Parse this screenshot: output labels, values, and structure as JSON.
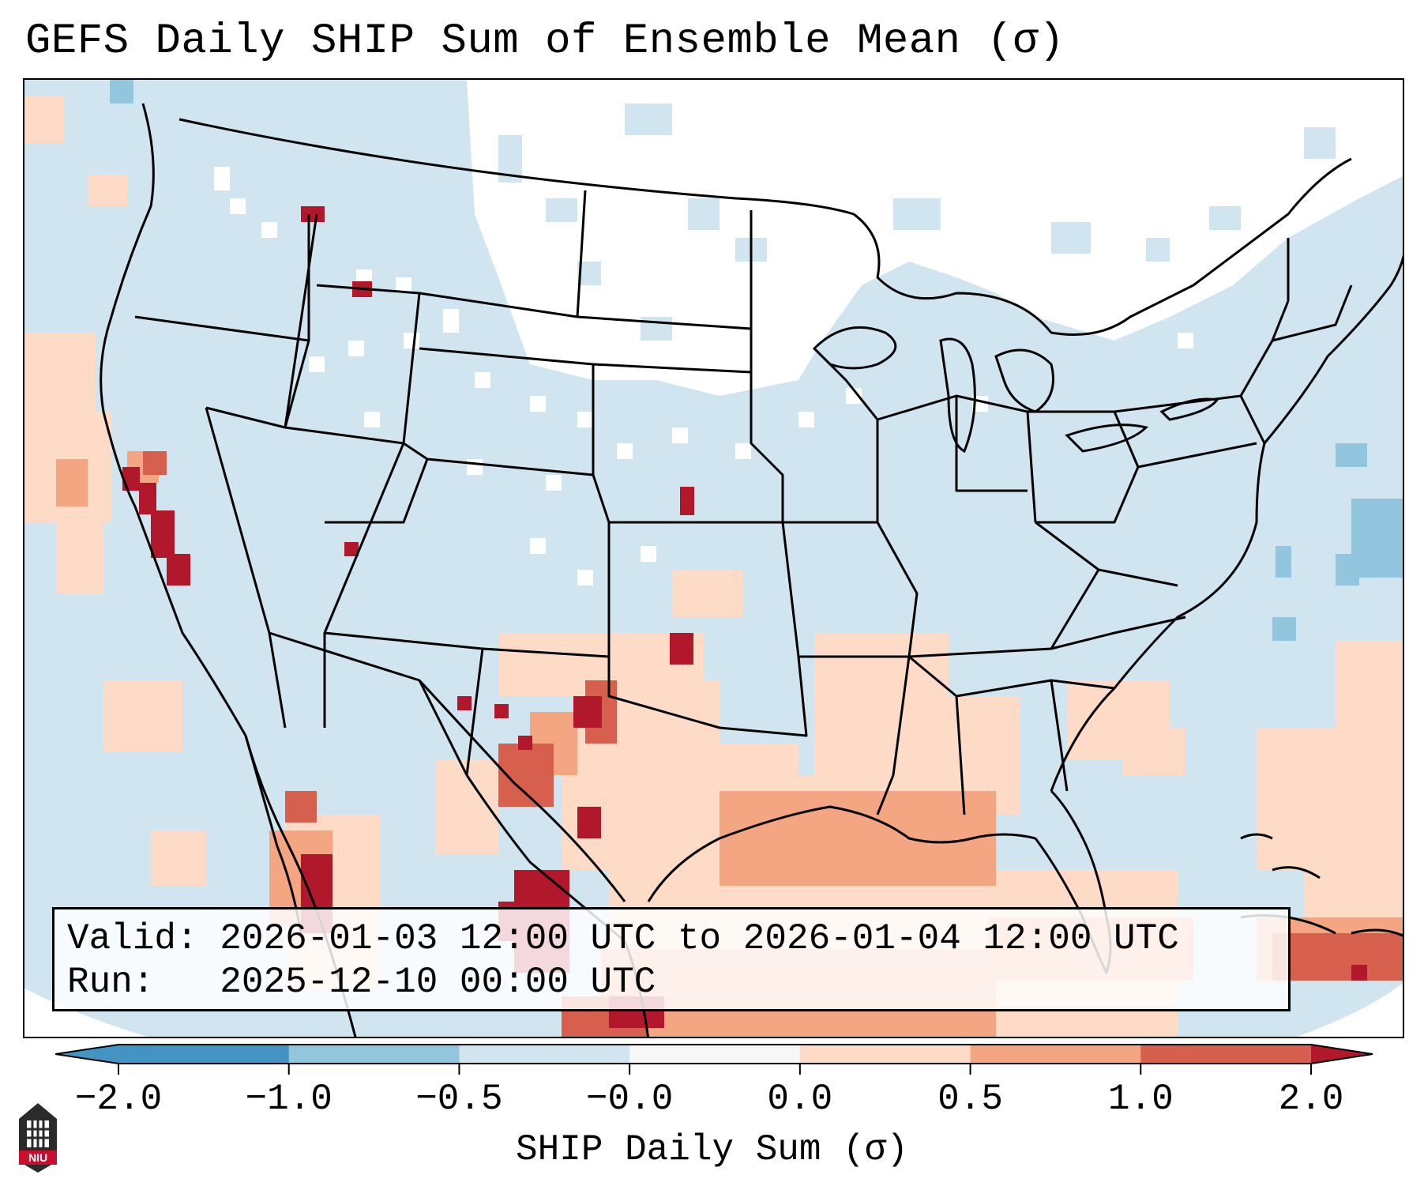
{
  "header": {
    "title": "GEFS Daily SHIP Sum of Ensemble Mean (σ)"
  },
  "info_box": {
    "valid_label": "Valid:",
    "valid_value": "2026-01-03 12:00 UTC to 2026-01-04 12:00 UTC",
    "run_label": "Run:",
    "run_value": "2025-12-10 00:00 UTC"
  },
  "colorbar": {
    "title": "SHIP Daily Sum (σ)",
    "tick_labels": [
      "−2.0",
      "−1.0",
      "−0.5",
      "−0.0",
      "0.0",
      "0.5",
      "1.0",
      "2.0"
    ],
    "colors": [
      "#4393c3",
      "#92c5de",
      "#d1e5f0",
      "#f7f7f7",
      "#fddbc7",
      "#f4a582",
      "#d6604d",
      "#b2182b"
    ],
    "extend": "both"
  },
  "map": {
    "projection": "Lambert conformal, CONUS",
    "background_color": "#d1e5f0",
    "no_data_color": "#ffffff",
    "border_color": "#000000"
  },
  "logo": {
    "text": "NIU",
    "icon": "niu-tower-logo"
  }
}
